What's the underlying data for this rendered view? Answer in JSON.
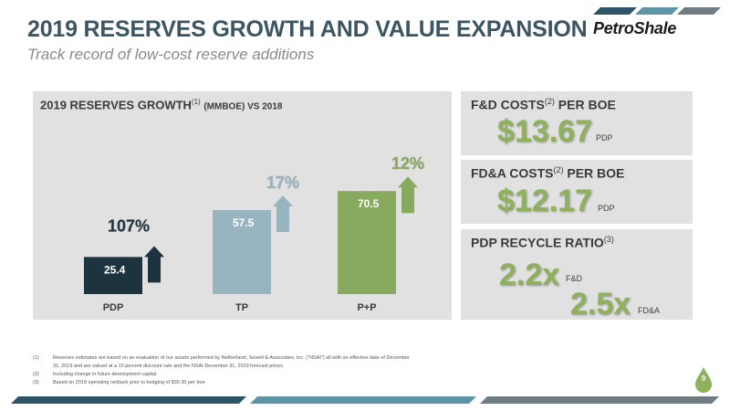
{
  "header": {
    "title": "2019 RESERVES GROWTH AND VALUE EXPANSION",
    "subtitle": "Track record of low-cost reserve additions",
    "logo_text": "PetroShale"
  },
  "chart_data": {
    "type": "bar",
    "title": "2019 RESERVES GROWTH",
    "title_superscript": "(1)",
    "title_units": "(MMBOE) VS 2018",
    "categories": [
      "PDP",
      "TP",
      "P+P"
    ],
    "values": [
      25.4,
      57.5,
      70.5
    ],
    "value_labels": [
      "25.4",
      "57.5",
      "70.5"
    ],
    "growth_labels": [
      "107%",
      "17%",
      "12%"
    ],
    "colors": [
      "#1e3340",
      "#97b5c0",
      "#87aa5e"
    ],
    "ylim": [
      0,
      80
    ],
    "grid": false,
    "legend": "none"
  },
  "boxes": {
    "fd": {
      "title": "F&D COSTS",
      "sup": "(2)",
      "title_rest": " PER BOE",
      "value": "$13.67",
      "unit": "PDP"
    },
    "fda": {
      "title": "FD&A COSTS",
      "sup": "(2)",
      "title_rest": " PER BOE",
      "value": "$12.17",
      "unit": "PDP"
    },
    "recycle": {
      "title": "PDP RECYCLE RATIO",
      "sup": "(3)",
      "value1": "2.2x",
      "unit1": "F&D",
      "value2": "2.5x",
      "unit2": "FD&A"
    }
  },
  "footnotes": [
    {
      "num": "(1)",
      "text": "Reserves estimates are based on an evaluation of our assets performed by Netherland, Sewell & Associates, Inc. (\"NSAI\") all with an effective date of December 31, 2019 and are valued at a 10 percent discount rate and the NSAI December 31, 2019 forecast prices."
    },
    {
      "num": "(2)",
      "text": "Including change in future development capital"
    },
    {
      "num": "(3)",
      "text": "Based on 2019 operating netback prior to hedging of $30.30 per boe"
    }
  ],
  "page_number": "9",
  "colors": {
    "title": "#3c5563",
    "accent_green": "#8fb15c",
    "panel_bg": "#e1e1e1",
    "bar_dark": "#1e3340",
    "bar_light": "#97b5c0",
    "bar_green": "#87aa5e"
  }
}
